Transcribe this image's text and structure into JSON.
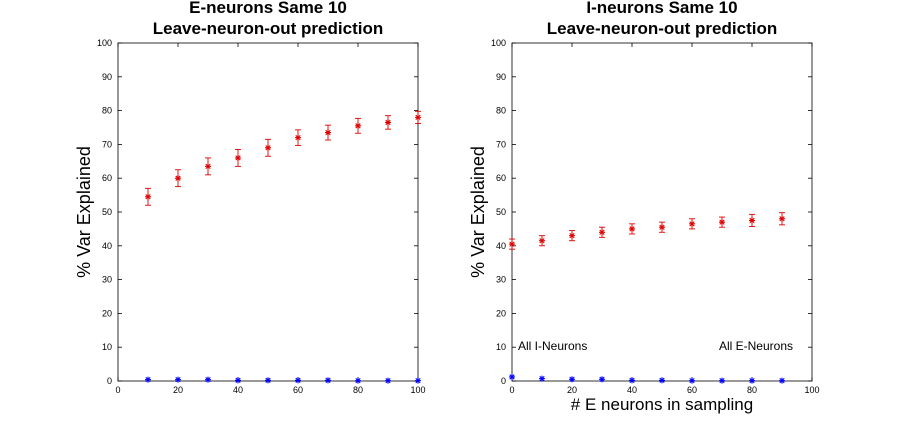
{
  "chart_data": [
    {
      "type": "scatter",
      "title": [
        "E-neurons Same 10",
        "Leave-neuron-out prediction"
      ],
      "xlabel": "",
      "ylabel": "% Var Explained",
      "xlim": [
        0,
        100
      ],
      "ylim": [
        0,
        100
      ],
      "xticks": [
        "0",
        "20",
        "40",
        "60",
        "80",
        "100"
      ],
      "yticks": [
        "0",
        "10",
        "20",
        "30",
        "40",
        "50",
        "60",
        "70",
        "80",
        "90",
        "100"
      ],
      "grid": false,
      "annotations": [],
      "series": [
        {
          "color": "#e00000",
          "marker": "asterisk",
          "x": [
            10,
            20,
            30,
            40,
            50,
            60,
            70,
            80,
            90,
            100
          ],
          "y": [
            54.5,
            60,
            63.5,
            66,
            69,
            72,
            73.5,
            75.5,
            76.5,
            78
          ],
          "err": [
            2.5,
            2.5,
            2.5,
            2.5,
            2.5,
            2.3,
            2.2,
            2.2,
            2,
            1.8
          ]
        },
        {
          "color": "#0000ff",
          "marker": "asterisk",
          "x": [
            10,
            20,
            30,
            40,
            50,
            60,
            70,
            80,
            90,
            100
          ],
          "y": [
            0.4,
            0.4,
            0.4,
            0.2,
            0.2,
            0.2,
            0.2,
            0.1,
            0.1,
            0.1
          ],
          "err": [
            0,
            0,
            0,
            0,
            0,
            0,
            0,
            0,
            0,
            0
          ]
        }
      ]
    },
    {
      "type": "scatter",
      "title": [
        "I-neurons Same 10",
        "Leave-neuron-out prediction"
      ],
      "xlabel": "# E neurons in sampling",
      "ylabel": "% Var Explained",
      "xlim": [
        0,
        100
      ],
      "ylim": [
        0,
        100
      ],
      "xticks": [
        "0",
        "20",
        "40",
        "60",
        "80",
        "100"
      ],
      "yticks": [
        "0",
        "10",
        "20",
        "30",
        "40",
        "50",
        "60",
        "70",
        "80",
        "90",
        "100"
      ],
      "grid": false,
      "annotations": [
        "All I-Neurons",
        "All E-Neurons"
      ],
      "series": [
        {
          "color": "#e00000",
          "marker": "asterisk",
          "x": [
            0,
            10,
            20,
            30,
            40,
            50,
            60,
            70,
            80,
            90
          ],
          "y": [
            40.5,
            41.5,
            43,
            44,
            45,
            45.5,
            46.5,
            47,
            47.5,
            48
          ],
          "err": [
            1.5,
            1.5,
            1.5,
            1.5,
            1.5,
            1.5,
            1.5,
            1.5,
            1.8,
            1.8
          ]
        },
        {
          "color": "#0000ff",
          "marker": "asterisk",
          "x": [
            0,
            10,
            20,
            30,
            40,
            50,
            60,
            70,
            80,
            90
          ],
          "y": [
            1.2,
            0.7,
            0.5,
            0.5,
            0.2,
            0.2,
            0.1,
            0.1,
            0.1,
            0.1
          ],
          "err": [
            0,
            0,
            0,
            0,
            0,
            0,
            0,
            0,
            0,
            0
          ]
        }
      ]
    }
  ]
}
